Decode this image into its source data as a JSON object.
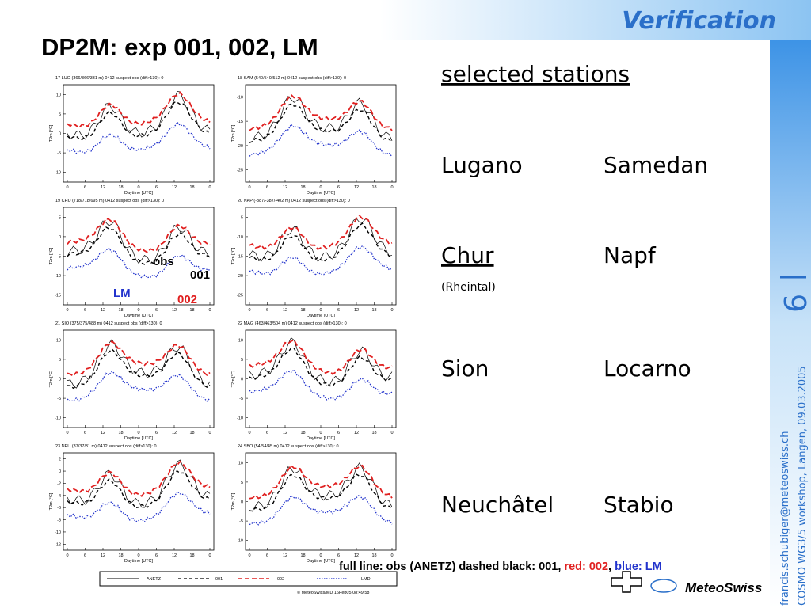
{
  "header": {
    "title": "DP2M: exp 001, 002, LM",
    "banner": "Verification"
  },
  "plot_axes": {
    "xticks": [
      "0",
      "6",
      "12",
      "18",
      "0",
      "6",
      "12",
      "18",
      "0"
    ],
    "xlabel": "Daytime [UTC]",
    "ylabel": "T2m [°C]"
  },
  "panels": [
    {
      "header": "17   LUG  (366/366/331 m)     0412     suspect obs (diff>130): 0",
      "yticks": [
        "10",
        "5",
        "0",
        "-5",
        "-10"
      ]
    },
    {
      "header": "18   SAM  (540/540/512 m)     0412     suspect obs (diff>130): 0",
      "yticks": [
        "-10",
        "-15",
        "-20",
        "-25"
      ]
    },
    {
      "header": "19   CHU  (718/718/695 m)     0412     suspect obs (diff>130): 0",
      "yticks": [
        "5",
        "0",
        "-5",
        "-10",
        "-15"
      ]
    },
    {
      "header": "20   NAP  (-387/-387/-402 m)     0412     suspect obs (diff>130): 0",
      "yticks": [
        "-5",
        "-10",
        "-15",
        "-20",
        "-25"
      ]
    },
    {
      "header": "21   SIO  (375/375/488 m)     0412     suspect obs (diff>130): 0",
      "yticks": [
        "10",
        "5",
        "0",
        "-5",
        "-10"
      ]
    },
    {
      "header": "22   MAG  (463/463/504 m)     0412     suspect obs (diff>130): 0",
      "yticks": [
        "10",
        "5",
        "0",
        "-5",
        "-10"
      ]
    },
    {
      "header": "23   NEU  (37/37/31 m)     0412     suspect obs (diff>130): 0",
      "yticks": [
        "2",
        "0",
        "-2",
        "-4",
        "-6",
        "-8",
        "-10",
        "-12"
      ]
    },
    {
      "header": "24   SBO  (54/54/45 m)     0412     suspect obs (diff>130): 0",
      "yticks": [
        "10",
        "5",
        "0",
        "-5",
        "-10"
      ]
    }
  ],
  "annotations": {
    "obs": "obs",
    "exp001": "001",
    "lm": "LM",
    "exp002": "002"
  },
  "legend": [
    "ANETZ",
    "001",
    "002",
    "LMD"
  ],
  "credit": "© MeteoSwiss/MD 16Feb05 08:49:58",
  "stations": {
    "heading": "selected stations",
    "rows": [
      [
        "Lugano",
        "Samedan"
      ],
      [
        "Chur",
        "Napf"
      ],
      [
        "Sion",
        "Locarno"
      ],
      [
        "Neuchâtel",
        "Stabio"
      ]
    ],
    "note": "(Rheintal)"
  },
  "footnote": {
    "obs": "full line: obs (ANETZ) dashed black: 001,",
    "red": "red: 002",
    "sep": ",",
    "blue": "blue: LM"
  },
  "sidebar": {
    "page": "6",
    "email": "francis.schubiger@meteoswiss.ch",
    "event": "COSMO WG3/5 workshop, Langen, 09.03.2005"
  },
  "logo": "MeteoSwiss"
}
